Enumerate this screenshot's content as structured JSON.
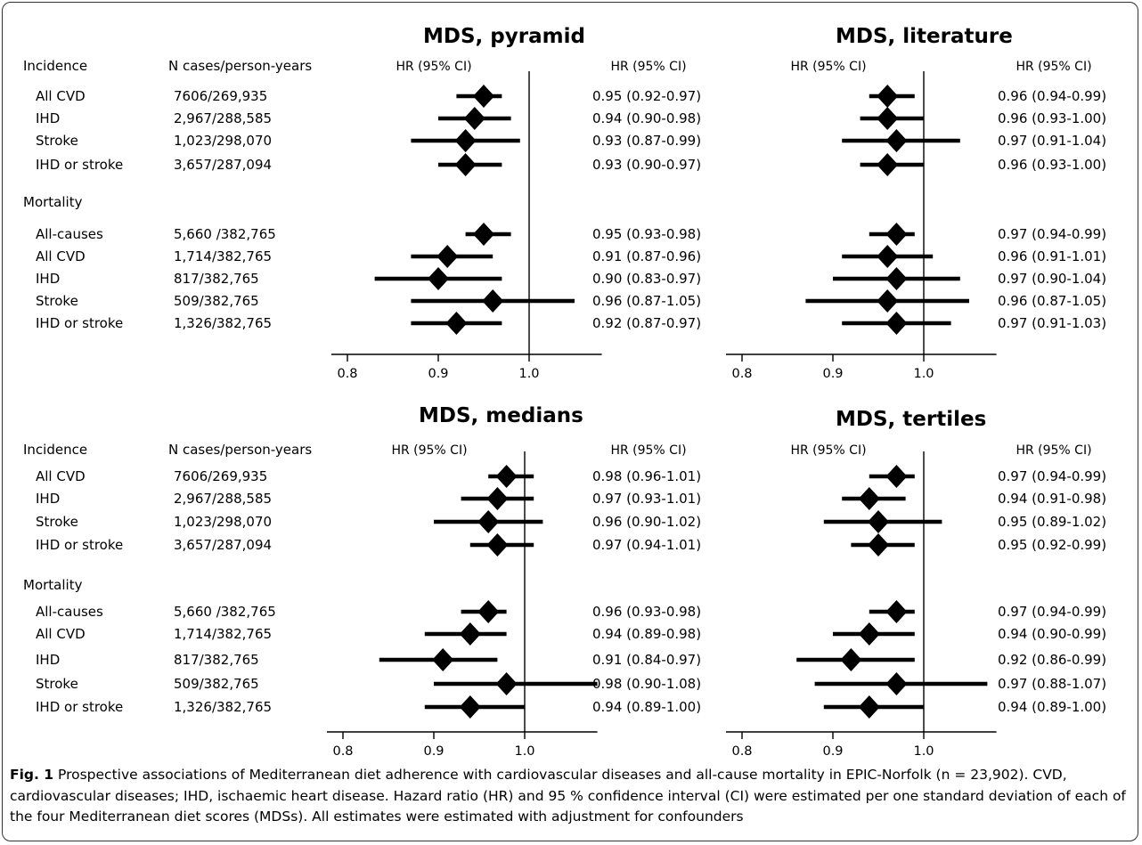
{
  "figure": {
    "caption_label": "Fig. 1",
    "caption_text": "Prospective associations of Mediterranean diet adherence with cardiovascular diseases and all-cause mortality in EPIC-Norfolk (n = 23,902). CVD, cardiovascular diseases; IHD, ischaemic heart disease. Hazard ratio (HR) and 95 % confidence interval (CI) were estimated per one standard deviation of each of the four Mediterranean diet scores (MDSs). All estimates were estimated with adjustment for confounders"
  },
  "chart_data": [
    {
      "type": "forest",
      "title": "MDS, pyramid",
      "ci_header": "HR (95% CI)",
      "ci_header_right": "HR (95% CI)",
      "label_header": "Incidence",
      "cases_header": "N cases/person-years",
      "xlim": [
        0.8,
        1.08
      ],
      "xticks": [
        "0.8",
        "0.9",
        "1.0"
      ],
      "reference_line": 1.0,
      "groups": [
        {
          "name": "Incidence",
          "rows": [
            {
              "label": "All CVD",
              "cases": "7606/269,935",
              "hr": 0.95,
              "lo": 0.92,
              "hi": 0.97,
              "text": "0.95 (0.92-0.97)"
            },
            {
              "label": "IHD",
              "cases": "2,967/288,585",
              "hr": 0.94,
              "lo": 0.9,
              "hi": 0.98,
              "text": "0.94 (0.90-0.98)"
            },
            {
              "label": "Stroke",
              "cases": "1,023/298,070",
              "hr": 0.93,
              "lo": 0.87,
              "hi": 0.99,
              "text": "0.93 (0.87-0.99)"
            },
            {
              "label": "IHD or stroke",
              "cases": "3,657/287,094",
              "hr": 0.93,
              "lo": 0.9,
              "hi": 0.97,
              "text": "0.93 (0.90-0.97)"
            }
          ]
        },
        {
          "name": "Mortality",
          "rows": [
            {
              "label": "All-causes",
              "cases": "5,660 /382,765",
              "hr": 0.95,
              "lo": 0.93,
              "hi": 0.98,
              "text": "0.95 (0.93-0.98)"
            },
            {
              "label": "All CVD",
              "cases": "1,714/382,765",
              "hr": 0.91,
              "lo": 0.87,
              "hi": 0.96,
              "text": "0.91 (0.87-0.96)"
            },
            {
              "label": "IHD",
              "cases": "817/382,765",
              "hr": 0.9,
              "lo": 0.83,
              "hi": 0.97,
              "text": "0.90 (0.83-0.97)"
            },
            {
              "label": "Stroke",
              "cases": "509/382,765",
              "hr": 0.96,
              "lo": 0.87,
              "hi": 1.05,
              "text": "0.96 (0.87-1.05)"
            },
            {
              "label": "IHD or stroke",
              "cases": "1,326/382,765",
              "hr": 0.92,
              "lo": 0.87,
              "hi": 0.97,
              "text": "0.92 (0.87-0.97)"
            }
          ]
        }
      ]
    },
    {
      "type": "forest",
      "title": "MDS, literature",
      "ci_header": "HR (95% CI)",
      "ci_header_right": "HR (95% CI)",
      "xlim": [
        0.8,
        1.08
      ],
      "xticks": [
        "0.8",
        "0.9",
        "1.0"
      ],
      "reference_line": 1.0,
      "groups": [
        {
          "name": "Incidence",
          "rows": [
            {
              "hr": 0.96,
              "lo": 0.94,
              "hi": 0.99,
              "text": "0.96 (0.94-0.99)"
            },
            {
              "hr": 0.96,
              "lo": 0.93,
              "hi": 1.0,
              "text": "0.96 (0.93-1.00)"
            },
            {
              "hr": 0.97,
              "lo": 0.91,
              "hi": 1.04,
              "text": "0.97 (0.91-1.04)"
            },
            {
              "hr": 0.96,
              "lo": 0.93,
              "hi": 1.0,
              "text": "0.96 (0.93-1.00)"
            }
          ]
        },
        {
          "name": "Mortality",
          "rows": [
            {
              "hr": 0.97,
              "lo": 0.94,
              "hi": 0.99,
              "text": "0.97 (0.94-0.99)"
            },
            {
              "hr": 0.96,
              "lo": 0.91,
              "hi": 1.01,
              "text": "0.96 (0.91-1.01)"
            },
            {
              "hr": 0.97,
              "lo": 0.9,
              "hi": 1.04,
              "text": "0.97 (0.90-1.04)"
            },
            {
              "hr": 0.96,
              "lo": 0.87,
              "hi": 1.05,
              "text": "0.96 (0.87-1.05)"
            },
            {
              "hr": 0.97,
              "lo": 0.91,
              "hi": 1.03,
              "text": "0.97 (0.91-1.03)"
            }
          ]
        }
      ]
    },
    {
      "type": "forest",
      "title": "MDS, medians",
      "ci_header": "HR (95% CI)",
      "ci_header_right": "HR (95% CI)",
      "label_header": "Incidence",
      "cases_header": "N cases/person-years",
      "xlim": [
        0.8,
        1.08
      ],
      "xticks": [
        "0.8",
        "0.9",
        "1.0"
      ],
      "reference_line": 1.0,
      "groups": [
        {
          "name": "Incidence",
          "rows": [
            {
              "label": "All CVD",
              "cases": "7606/269,935",
              "hr": 0.98,
              "lo": 0.96,
              "hi": 1.01,
              "text": "0.98 (0.96-1.01)"
            },
            {
              "label": "IHD",
              "cases": "2,967/288,585",
              "hr": 0.97,
              "lo": 0.93,
              "hi": 1.01,
              "text": "0.97 (0.93-1.01)"
            },
            {
              "label": "Stroke",
              "cases": "1,023/298,070",
              "hr": 0.96,
              "lo": 0.9,
              "hi": 1.02,
              "text": "0.96 (0.90-1.02)"
            },
            {
              "label": "IHD or stroke",
              "cases": "3,657/287,094",
              "hr": 0.97,
              "lo": 0.94,
              "hi": 1.01,
              "text": "0.97 (0.94-1.01)"
            }
          ]
        },
        {
          "name": "Mortality",
          "rows": [
            {
              "label": "All-causes",
              "cases": "5,660 /382,765",
              "hr": 0.96,
              "lo": 0.93,
              "hi": 0.98,
              "text": "0.96 (0.93-0.98)"
            },
            {
              "label": "All CVD",
              "cases": "1,714/382,765",
              "hr": 0.94,
              "lo": 0.89,
              "hi": 0.98,
              "text": "0.94 (0.89-0.98)"
            },
            {
              "label": "IHD",
              "cases": "817/382,765",
              "hr": 0.91,
              "lo": 0.84,
              "hi": 0.97,
              "text": "0.91 (0.84-0.97)"
            },
            {
              "label": "Stroke",
              "cases": "509/382,765",
              "hr": 0.98,
              "lo": 0.9,
              "hi": 1.08,
              "text": "0.98 (0.90-1.08)"
            },
            {
              "label": "IHD or stroke",
              "cases": "1,326/382,765",
              "hr": 0.94,
              "lo": 0.89,
              "hi": 1.0,
              "text": "0.94 (0.89-1.00)"
            }
          ]
        }
      ]
    },
    {
      "type": "forest",
      "title": "MDS, tertiles",
      "ci_header": "HR (95% CI)",
      "ci_header_right": "HR (95% CI)",
      "xlim": [
        0.8,
        1.08
      ],
      "xticks": [
        "0.8",
        "0.9",
        "1.0"
      ],
      "reference_line": 1.0,
      "groups": [
        {
          "name": "Incidence",
          "rows": [
            {
              "hr": 0.97,
              "lo": 0.94,
              "hi": 0.99,
              "text": "0.97 (0.94-0.99)"
            },
            {
              "hr": 0.94,
              "lo": 0.91,
              "hi": 0.98,
              "text": "0.94 (0.91-0.98)"
            },
            {
              "hr": 0.95,
              "lo": 0.89,
              "hi": 1.02,
              "text": "0.95 (0.89-1.02)"
            },
            {
              "hr": 0.95,
              "lo": 0.92,
              "hi": 0.99,
              "text": "0.95 (0.92-0.99)"
            }
          ]
        },
        {
          "name": "Mortality",
          "rows": [
            {
              "hr": 0.97,
              "lo": 0.94,
              "hi": 0.99,
              "text": "0.97 (0.94-0.99)"
            },
            {
              "hr": 0.94,
              "lo": 0.9,
              "hi": 0.99,
              "text": "0.94 (0.90-0.99)"
            },
            {
              "hr": 0.92,
              "lo": 0.86,
              "hi": 0.99,
              "text": "0.92 (0.86-0.99)"
            },
            {
              "hr": 0.97,
              "lo": 0.88,
              "hi": 1.07,
              "text": "0.97 (0.88-1.07)"
            },
            {
              "hr": 0.94,
              "lo": 0.89,
              "hi": 1.0,
              "text": "0.94 (0.89-1.00)"
            }
          ]
        }
      ]
    }
  ]
}
